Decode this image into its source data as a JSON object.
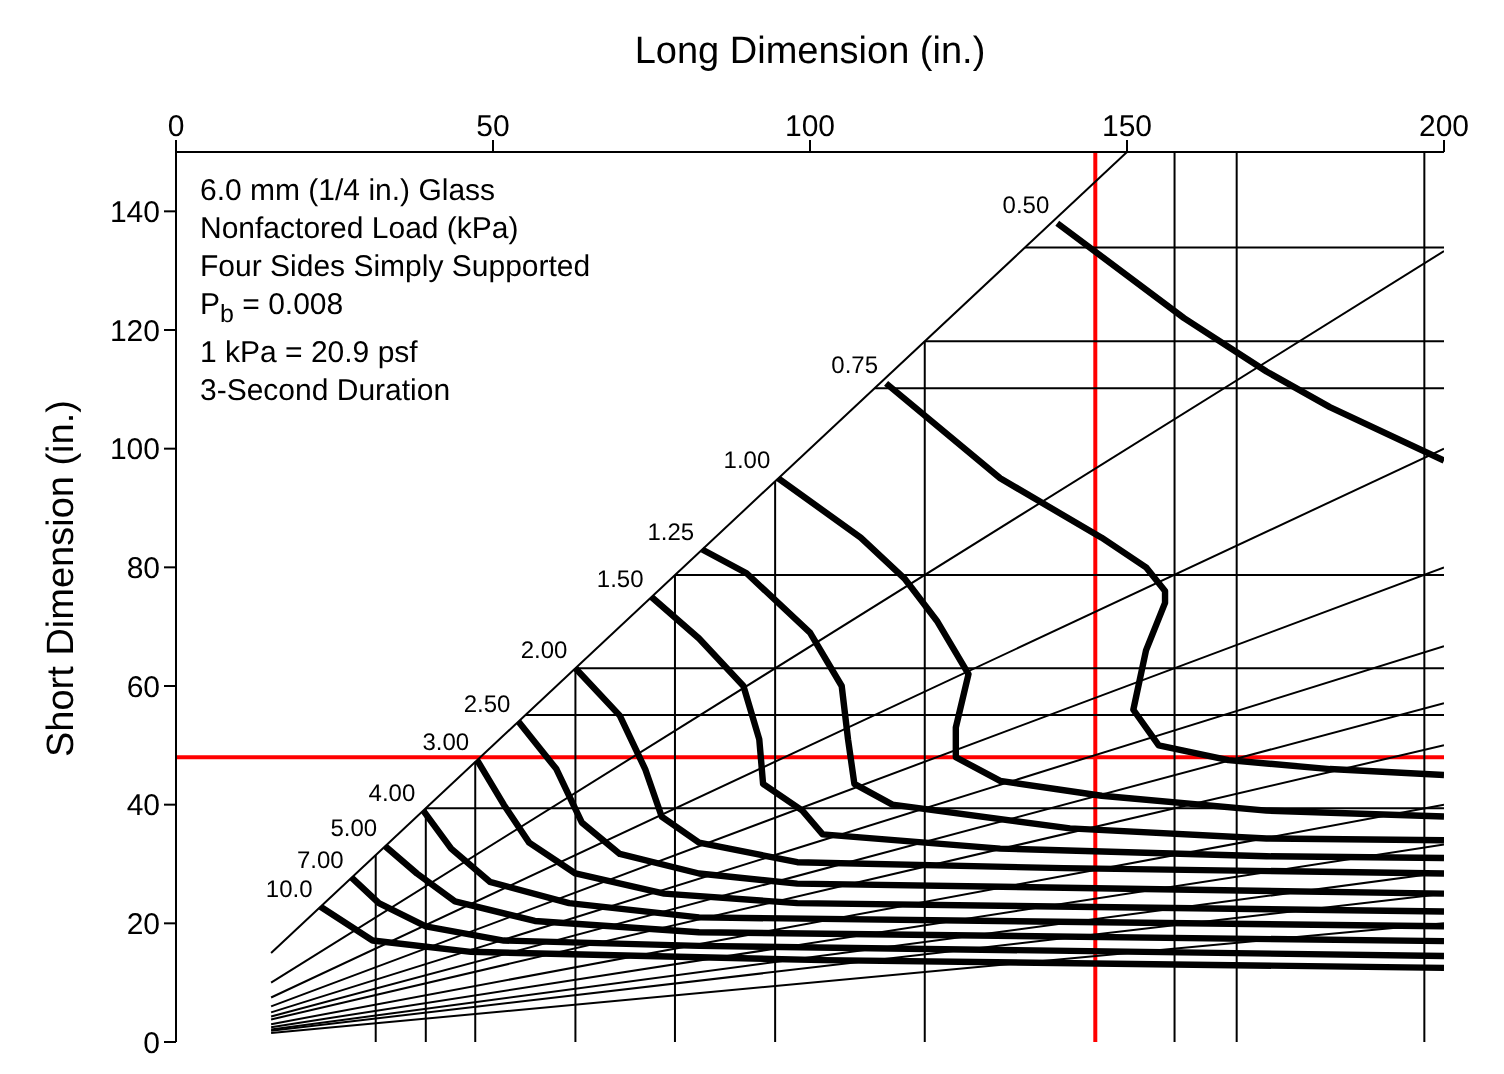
{
  "chart_data": {
    "type": "line",
    "xlabel": "Long Dimension (in.)",
    "ylabel": "Short Dimension (in.)",
    "annotations": [
      "6.0 mm (1/4 in.) Glass",
      "Nonfactored Load (kPa)",
      "Four Sides Simply Supported",
      "P$_{b}$ = 0.008",
      "1 kPa = 20.9 psf",
      "3-Second Duration"
    ],
    "xlim": [
      0,
      200
    ],
    "xticks": [
      0,
      50,
      100,
      150,
      200
    ],
    "ylim": [
      0,
      150
    ],
    "yticks": [
      0,
      20,
      40,
      60,
      80,
      100,
      120,
      140
    ],
    "grid": false,
    "legend": false,
    "marker": "none",
    "line_style": "solid",
    "ref_lines": [
      {
        "axis": "x",
        "value": 145,
        "color": "#ff0000"
      },
      {
        "axis": "y",
        "value": 48,
        "color": "#ff0000"
      }
    ],
    "series": [
      {
        "color": "#000000",
        "x": [
          15,
          150
        ],
        "values": [
          15,
          150
        ]
      },
      {
        "color": "#000000",
        "x": [
          15,
          200
        ],
        "values": [
          10,
          133.3
        ]
      },
      {
        "color": "#000000",
        "x": [
          15,
          200
        ],
        "values": [
          7.5,
          100
        ]
      },
      {
        "color": "#000000",
        "x": [
          15,
          200
        ],
        "values": [
          6,
          80
        ]
      },
      {
        "color": "#000000",
        "x": [
          15,
          200
        ],
        "values": [
          5,
          66.7
        ]
      },
      {
        "color": "#000000",
        "x": [
          15,
          200
        ],
        "values": [
          4.3,
          57.1
        ]
      },
      {
        "color": "#000000",
        "x": [
          15,
          200
        ],
        "values": [
          3.8,
          50
        ]
      },
      {
        "color": "#000000",
        "x": [
          15,
          200
        ],
        "values": [
          3,
          40
        ]
      },
      {
        "color": "#000000",
        "x": [
          15,
          200
        ],
        "values": [
          2.5,
          33.3
        ]
      },
      {
        "color": "#000000",
        "x": [
          15,
          200
        ],
        "values": [
          2.1,
          28.6
        ]
      },
      {
        "color": "#000000",
        "x": [
          15,
          200
        ],
        "values": [
          1.9,
          25
        ]
      },
      {
        "color": "#000000",
        "x": [
          15,
          200
        ],
        "values": [
          1.5,
          20
        ]
      },
      {
        "color": "#000000",
        "x": [
          31.5,
          31.5
        ],
        "values": [
          0,
          31.5
        ]
      },
      {
        "color": "#000000",
        "x": [
          39.4,
          39.4
        ],
        "values": [
          0,
          39.4
        ]
      },
      {
        "color": "#000000",
        "x": [
          47.2,
          47.2
        ],
        "values": [
          0,
          47.2
        ]
      },
      {
        "color": "#000000",
        "x": [
          63,
          63
        ],
        "values": [
          0,
          63
        ]
      },
      {
        "color": "#000000",
        "x": [
          78.7,
          78.7
        ],
        "values": [
          0,
          78.7
        ]
      },
      {
        "color": "#000000",
        "x": [
          94.5,
          94.5
        ],
        "values": [
          0,
          94.5
        ]
      },
      {
        "color": "#000000",
        "x": [
          118.1,
          118.1
        ],
        "values": [
          0,
          118.1
        ]
      },
      {
        "color": "#000000",
        "x": [
          157.5,
          157.5
        ],
        "values": [
          0,
          150
        ]
      },
      {
        "color": "#000000",
        "x": [
          167.3,
          167.3
        ],
        "values": [
          0,
          150
        ]
      },
      {
        "color": "#000000",
        "x": [
          196.9,
          196.9
        ],
        "values": [
          0,
          150
        ]
      },
      {
        "color": "#000000",
        "x": [
          39.4,
          200
        ],
        "values": [
          39.4,
          39.4
        ]
      },
      {
        "color": "#000000",
        "x": [
          55.1,
          200
        ],
        "values": [
          55.1,
          55.1
        ]
      },
      {
        "color": "#000000",
        "x": [
          63,
          200
        ],
        "values": [
          63,
          63
        ]
      },
      {
        "color": "#000000",
        "x": [
          78.7,
          200
        ],
        "values": [
          78.7,
          78.7
        ]
      },
      {
        "color": "#000000",
        "x": [
          110.2,
          200
        ],
        "values": [
          110.2,
          110.2
        ]
      },
      {
        "color": "#000000",
        "x": [
          118.1,
          200
        ],
        "values": [
          118.1,
          118.1
        ]
      },
      {
        "color": "#000000",
        "x": [
          133.9,
          200
        ],
        "values": [
          133.9,
          133.9
        ]
      },
      {
        "name": "0.50",
        "color": "#000000",
        "x": [
          139,
          159,
          172,
          182,
          200
        ],
        "values": [
          138,
          122,
          113,
          107,
          98
        ]
      },
      {
        "name": "0.75",
        "color": "#000000",
        "x": [
          112,
          130,
          146,
          153,
          156,
          156,
          153,
          151,
          155,
          166,
          182,
          200
        ],
        "values": [
          111,
          95,
          85,
          80,
          76,
          74,
          66,
          56,
          50,
          47.5,
          46,
          45
        ]
      },
      {
        "name": "1.00",
        "color": "#000000",
        "x": [
          95,
          108,
          115,
          120,
          125,
          123,
          123,
          130,
          146,
          172,
          200
        ],
        "values": [
          95,
          85,
          78,
          71,
          62,
          53,
          48,
          44,
          41.5,
          39,
          38
        ]
      },
      {
        "name": "1.25",
        "color": "#000000",
        "x": [
          83,
          90,
          100,
          105,
          106,
          107,
          113,
          141,
          172,
          200
        ],
        "values": [
          83,
          79,
          69,
          60,
          51,
          43.5,
          40,
          36,
          34.3,
          34
        ]
      },
      {
        "name": "1.50",
        "color": "#000000",
        "x": [
          75,
          82.5,
          89.5,
          92,
          92.6,
          98.8,
          102,
          130,
          172,
          200
        ],
        "values": [
          75,
          68,
          60,
          51,
          43.5,
          39,
          35,
          32.6,
          31.3,
          31
        ]
      },
      {
        "name": "2.00",
        "color": "#000000",
        "x": [
          63,
          70,
          74,
          76.6,
          82.5,
          98,
          140,
          200
        ],
        "values": [
          63,
          55,
          46,
          38,
          33.6,
          30.3,
          29.3,
          28.4
        ]
      },
      {
        "name": "2.50",
        "color": "#000000",
        "x": [
          54,
          60,
          64,
          70,
          82.5,
          98,
          200
        ],
        "values": [
          54,
          46,
          37,
          31.7,
          28.4,
          26.7,
          25
        ]
      },
      {
        "name": "3.00",
        "color": "#000000",
        "x": [
          47.5,
          51.7,
          55.7,
          63,
          77,
          98,
          200
        ],
        "values": [
          47.5,
          40,
          33.6,
          28.4,
          25,
          23.4,
          22
        ]
      },
      {
        "name": "4.00",
        "color": "#000000",
        "x": [
          39,
          43.4,
          49.5,
          62,
          82.5,
          200
        ],
        "values": [
          39,
          32.6,
          27,
          23.4,
          21,
          19.5
        ]
      },
      {
        "name": "5.00",
        "color": "#000000",
        "x": [
          33,
          38,
          44,
          56.6,
          82.5,
          200
        ],
        "values": [
          33,
          28.4,
          23.7,
          20.4,
          18.5,
          17
        ]
      },
      {
        "name": "7.00",
        "color": "#000000",
        "x": [
          27.7,
          32,
          39.4,
          51.7,
          82.5,
          200
        ],
        "values": [
          27.7,
          23.4,
          19.5,
          17.1,
          16.2,
          14.5
        ]
      },
      {
        "name": "10.0",
        "color": "#000000",
        "x": [
          22.8,
          31,
          46.5,
          102,
          200
        ],
        "values": [
          22.8,
          17.1,
          15.2,
          13.8,
          12.5
        ]
      }
    ]
  }
}
